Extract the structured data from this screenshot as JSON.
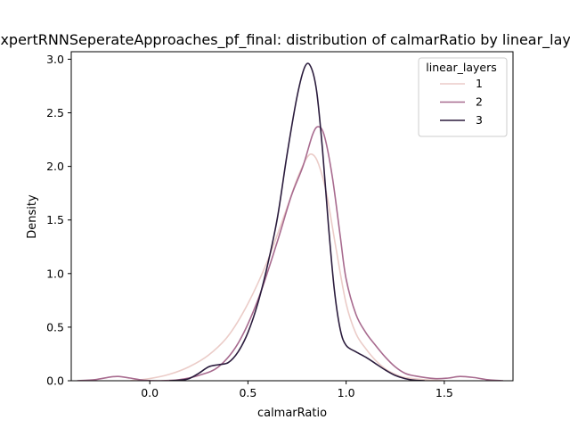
{
  "chart_data": {
    "type": "line",
    "title": "ExpertRNNSeperateApproaches_pf_final: distribution of calmarRatio by linear_layers",
    "xlabel": "calmarRatio",
    "ylabel": "Density",
    "xlim": [
      -0.4,
      1.85
    ],
    "ylim": [
      0,
      3.07
    ],
    "xticks": [
      0.0,
      0.5,
      1.0,
      1.5
    ],
    "xtick_labels": [
      "0.0",
      "0.5",
      "1.0",
      "1.5"
    ],
    "yticks": [
      0.0,
      0.5,
      1.0,
      1.5,
      2.0,
      2.5,
      3.0
    ],
    "ytick_labels": [
      "0.0",
      "0.5",
      "1.0",
      "1.5",
      "2.0",
      "2.5",
      "3.0"
    ],
    "legend": {
      "title": "linear_layers",
      "position": "top-right"
    },
    "series": [
      {
        "name": "1",
        "color": "#ebccc8",
        "points": [
          [
            -0.1,
            0.0
          ],
          [
            0.0,
            0.02
          ],
          [
            0.1,
            0.06
          ],
          [
            0.2,
            0.13
          ],
          [
            0.3,
            0.24
          ],
          [
            0.4,
            0.42
          ],
          [
            0.5,
            0.72
          ],
          [
            0.6,
            1.12
          ],
          [
            0.7,
            1.62
          ],
          [
            0.75,
            1.88
          ],
          [
            0.8,
            2.08
          ],
          [
            0.83,
            2.11
          ],
          [
            0.86,
            2.02
          ],
          [
            0.9,
            1.75
          ],
          [
            0.95,
            1.22
          ],
          [
            1.0,
            0.72
          ],
          [
            1.05,
            0.44
          ],
          [
            1.1,
            0.3
          ],
          [
            1.15,
            0.19
          ],
          [
            1.2,
            0.11
          ],
          [
            1.25,
            0.06
          ],
          [
            1.3,
            0.03
          ],
          [
            1.4,
            0.01
          ],
          [
            1.5,
            0.0
          ]
        ]
      },
      {
        "name": "2",
        "color": "#a86b8f",
        "points": [
          [
            -0.37,
            0.0
          ],
          [
            -0.28,
            0.01
          ],
          [
            -0.2,
            0.035
          ],
          [
            -0.16,
            0.04
          ],
          [
            -0.1,
            0.025
          ],
          [
            -0.03,
            0.005
          ],
          [
            0.05,
            0.0
          ],
          [
            0.15,
            0.01
          ],
          [
            0.25,
            0.05
          ],
          [
            0.35,
            0.13
          ],
          [
            0.45,
            0.35
          ],
          [
            0.55,
            0.75
          ],
          [
            0.65,
            1.3
          ],
          [
            0.72,
            1.72
          ],
          [
            0.78,
            2.0
          ],
          [
            0.83,
            2.3
          ],
          [
            0.86,
            2.37
          ],
          [
            0.89,
            2.28
          ],
          [
            0.93,
            1.9
          ],
          [
            0.97,
            1.35
          ],
          [
            1.0,
            0.95
          ],
          [
            1.05,
            0.62
          ],
          [
            1.1,
            0.45
          ],
          [
            1.15,
            0.33
          ],
          [
            1.2,
            0.22
          ],
          [
            1.25,
            0.13
          ],
          [
            1.3,
            0.07
          ],
          [
            1.35,
            0.045
          ],
          [
            1.45,
            0.02
          ],
          [
            1.52,
            0.025
          ],
          [
            1.58,
            0.04
          ],
          [
            1.65,
            0.03
          ],
          [
            1.72,
            0.01
          ],
          [
            1.8,
            0.0
          ]
        ]
      },
      {
        "name": "3",
        "color": "#2b1c3d",
        "points": [
          [
            0.1,
            0.0
          ],
          [
            0.15,
            0.005
          ],
          [
            0.2,
            0.02
          ],
          [
            0.25,
            0.07
          ],
          [
            0.3,
            0.13
          ],
          [
            0.35,
            0.15
          ],
          [
            0.4,
            0.17
          ],
          [
            0.45,
            0.27
          ],
          [
            0.5,
            0.45
          ],
          [
            0.55,
            0.72
          ],
          [
            0.6,
            1.08
          ],
          [
            0.65,
            1.52
          ],
          [
            0.7,
            2.12
          ],
          [
            0.75,
            2.65
          ],
          [
            0.79,
            2.93
          ],
          [
            0.82,
            2.93
          ],
          [
            0.85,
            2.7
          ],
          [
            0.88,
            2.15
          ],
          [
            0.91,
            1.45
          ],
          [
            0.94,
            0.85
          ],
          [
            0.97,
            0.48
          ],
          [
            1.0,
            0.33
          ],
          [
            1.05,
            0.27
          ],
          [
            1.1,
            0.22
          ],
          [
            1.15,
            0.16
          ],
          [
            1.2,
            0.1
          ],
          [
            1.25,
            0.05
          ],
          [
            1.3,
            0.02
          ],
          [
            1.35,
            0.005
          ],
          [
            1.4,
            0.0
          ]
        ]
      }
    ]
  }
}
